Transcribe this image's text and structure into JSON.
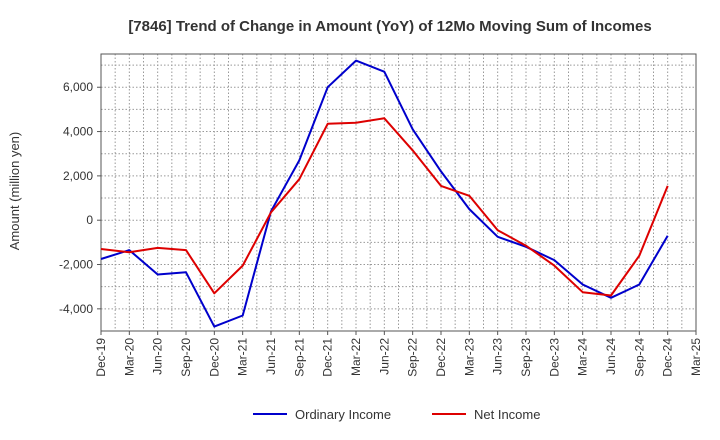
{
  "chart_data": {
    "type": "line",
    "title": "[7846]  Trend of Change in Amount (YoY) of 12Mo Moving Sum of Incomes",
    "xlabel": "",
    "ylabel": "Amount (million yen)",
    "ylim": [
      -5000,
      7500
    ],
    "yticks": [
      -4000,
      -2000,
      0,
      2000,
      4000,
      6000
    ],
    "ytick_labels": [
      "-4,000",
      "-2,000",
      "0",
      "2,000",
      "4,000",
      "6,000"
    ],
    "grid": true,
    "legend_position": "bottom-center",
    "categories": [
      "Dec-19",
      "Mar-20",
      "Jun-20",
      "Sep-20",
      "Dec-20",
      "Mar-21",
      "Jun-21",
      "Sep-21",
      "Dec-21",
      "Mar-22",
      "Jun-22",
      "Sep-22",
      "Dec-22",
      "Mar-23",
      "Jun-23",
      "Sep-23",
      "Dec-23",
      "Mar-24",
      "Jun-24",
      "Sep-24",
      "Dec-24",
      "Mar-25"
    ],
    "series": [
      {
        "name": "Ordinary Income",
        "color": "#0000cc",
        "values": [
          -1750,
          -1350,
          -2450,
          -2350,
          -4800,
          -4300,
          400,
          2700,
          6000,
          7200,
          6700,
          4100,
          2200,
          500,
          -750,
          -1200,
          -1800,
          -2900,
          -3500,
          -2900,
          -700,
          null
        ]
      },
      {
        "name": "Net Income",
        "color": "#dd0000",
        "values": [
          -1300,
          -1450,
          -1250,
          -1350,
          -3300,
          -2050,
          350,
          1850,
          4350,
          4400,
          4600,
          3150,
          1550,
          1100,
          -450,
          -1150,
          -2050,
          -3250,
          -3400,
          -1600,
          1550,
          null
        ]
      }
    ]
  }
}
